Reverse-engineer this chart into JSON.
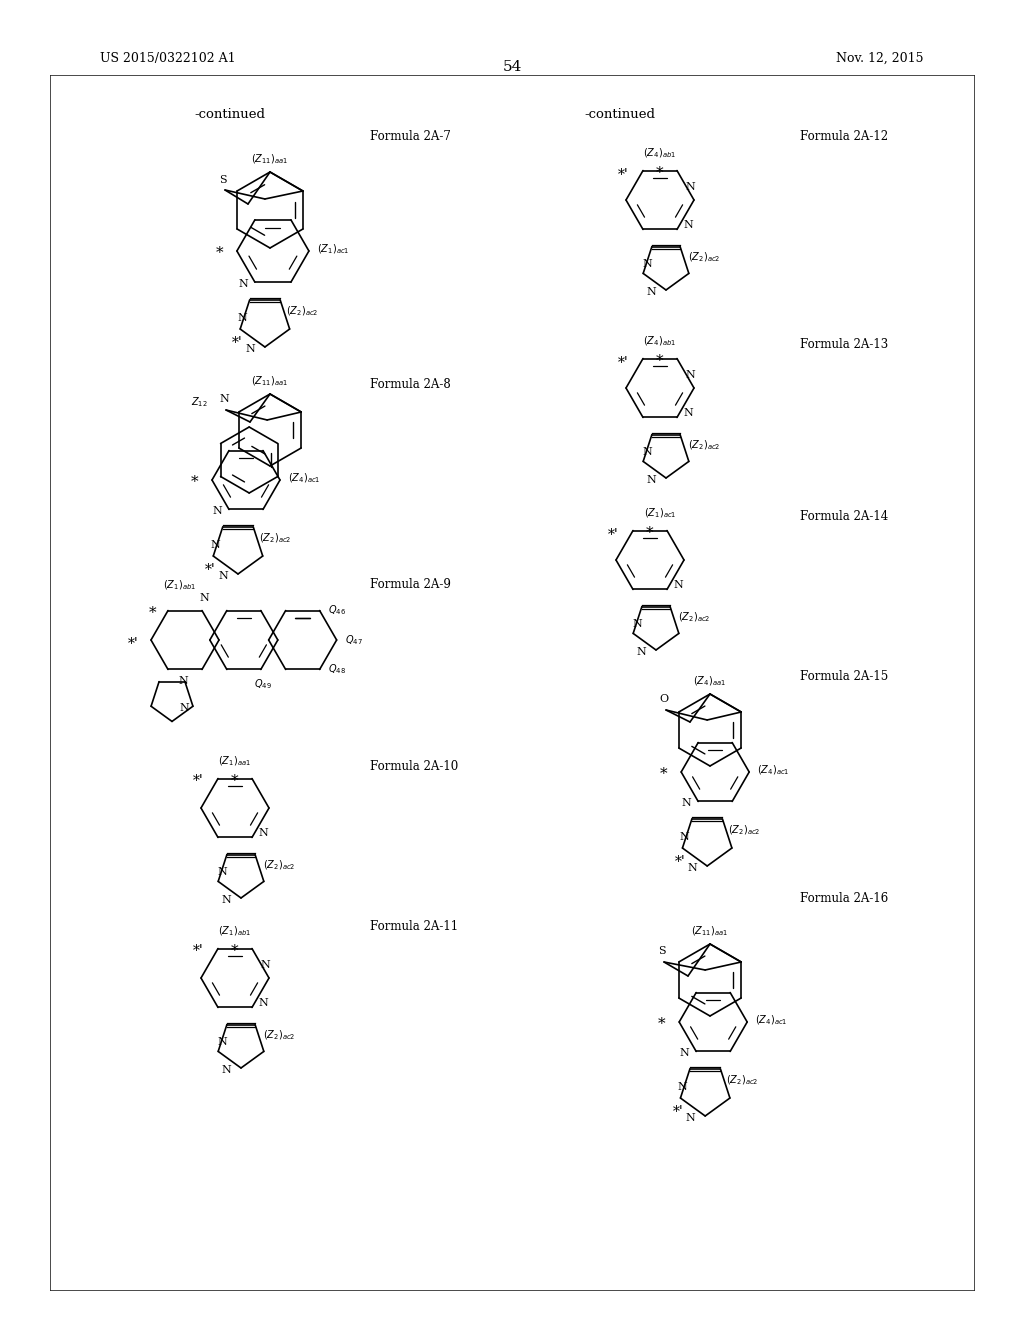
{
  "page_number": "54",
  "patent_number": "US 2015/0322102 A1",
  "patent_date": "Nov. 12, 2015",
  "continued_left": "-continued",
  "continued_right": "-continued",
  "background_color": "#ffffff",
  "text_color": "#000000"
}
